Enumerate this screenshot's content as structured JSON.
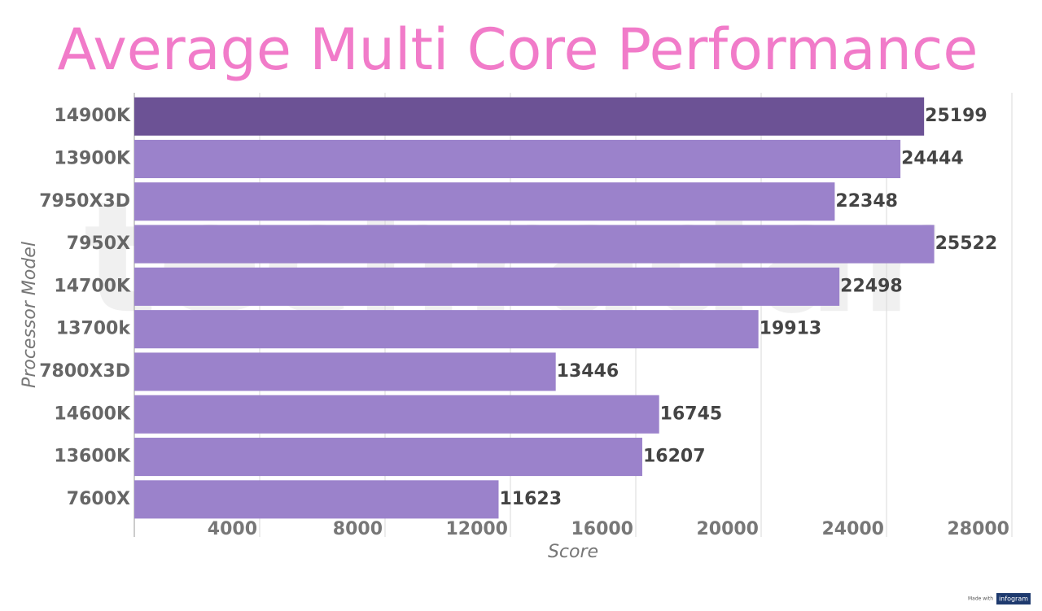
{
  "chart_data": {
    "type": "bar",
    "orientation": "horizontal",
    "title": "Average Multi Core Performance",
    "x_label": "Score",
    "y_label": "Processor Model",
    "categories": [
      "14900K",
      "13900K",
      "7950X3D",
      "7950X",
      "14700K",
      "13700k",
      "7800X3D",
      "14600K",
      "13600K",
      "7600X"
    ],
    "values": [
      25199,
      24444,
      22348,
      25522,
      22498,
      19913,
      13446,
      16745,
      16207,
      11623
    ],
    "colors": [
      "#6c5295",
      "#9b82cb",
      "#9b82cb",
      "#9b82cb",
      "#9b82cb",
      "#9b82cb",
      "#9b82cb",
      "#9b82cb",
      "#9b82cb",
      "#9b82cb"
    ],
    "xlim": [
      0,
      28000
    ],
    "xticks": [
      4000,
      8000,
      12000,
      16000,
      20000,
      24000,
      28000
    ],
    "grid": true,
    "watermark": "techradar",
    "footer": "Made with",
    "brand": "infogram"
  }
}
